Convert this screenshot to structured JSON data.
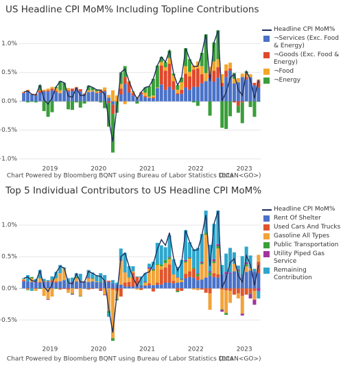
{
  "chart_data": [
    {
      "type": "bar",
      "title": "US Headline CPI MoM% Including Topline Contributions",
      "source": "Chart Powered by Bloomberg BQNT using Bureau of Labor Statistics Data",
      "source_code": "(ECAN<GO>)",
      "categories": [
        null,
        null,
        null,
        null,
        null,
        null,
        null,
        "2019",
        null,
        null,
        null,
        null,
        null,
        null,
        null,
        null,
        null,
        null,
        null,
        "2020",
        null,
        null,
        null,
        null,
        null,
        null,
        null,
        null,
        null,
        null,
        null,
        "2021",
        null,
        null,
        null,
        null,
        null,
        null,
        null,
        null,
        null,
        null,
        null,
        "2022",
        null,
        null,
        null,
        null,
        null,
        null,
        null,
        null,
        null,
        null,
        null,
        "2023",
        null,
        null,
        null
      ],
      "ylim": [
        -1.1,
        1.4
      ],
      "yticks": [
        {
          "value": -1.0,
          "label": "−1.0%"
        },
        {
          "value": -0.5,
          "label": "−0.5%"
        },
        {
          "value": 0,
          "label": "0.0%"
        },
        {
          "value": 0.5,
          "label": "0.5%"
        },
        {
          "value": 1.0,
          "label": "1.0%"
        }
      ],
      "grid": true,
      "series": [
        {
          "name": "Headline CPI MoM%",
          "type": "line",
          "color": "#1f2d5a",
          "values": [
            0.16,
            0.18,
            0.12,
            0.11,
            0.28,
            0.03,
            -0.05,
            0.06,
            0.25,
            0.35,
            0.32,
            0.09,
            0.07,
            0.23,
            0.1,
            0.1,
            0.27,
            0.24,
            0.2,
            0.19,
            0.12,
            -0.33,
            -0.7,
            -0.1,
            0.5,
            0.56,
            0.35,
            0.17,
            0.04,
            0.16,
            0.24,
            0.26,
            0.39,
            0.62,
            0.77,
            0.68,
            0.88,
            0.48,
            0.28,
            0.41,
            0.92,
            0.73,
            0.6,
            0.61,
            0.84,
            1.16,
            0.35,
            1.02,
            1.23,
            0.01,
            0.16,
            0.41,
            0.47,
            0.2,
            0.1,
            0.52,
            0.37,
            0.05,
            0.37
          ]
        },
        {
          "name": "¬Services (Exc. Food & Energy)",
          "color": "#4a72c8",
          "values": [
            0.14,
            0.17,
            0.12,
            0.1,
            0.15,
            0.17,
            0.17,
            0.19,
            0.16,
            0.14,
            0.19,
            0.17,
            0.18,
            0.2,
            0.17,
            0.12,
            0.16,
            0.17,
            0.14,
            0.15,
            0.17,
            0.06,
            -0.06,
            0.0,
            0.12,
            0.3,
            0.15,
            0.1,
            0.05,
            0.12,
            0.07,
            0.06,
            0.05,
            0.23,
            0.29,
            0.2,
            0.25,
            0.2,
            0.12,
            0.13,
            0.24,
            0.2,
            0.25,
            0.25,
            0.31,
            0.35,
            0.4,
            0.34,
            0.41,
            0.26,
            0.42,
            0.53,
            0.31,
            0.33,
            0.42,
            0.38,
            0.42,
            0.28,
            0.24
          ]
        },
        {
          "name": "¬Goods (Exc. Food & Energy)",
          "color": "#e0482c",
          "values": [
            0.01,
            0.02,
            0.0,
            0.02,
            0.03,
            0.01,
            0.02,
            0.03,
            0.02,
            0.0,
            0.0,
            0.02,
            0.04,
            0.04,
            0.04,
            0.01,
            0.0,
            0.0,
            0.01,
            0.03,
            0.02,
            -0.03,
            -0.16,
            -0.01,
            0.1,
            0.12,
            0.18,
            0.04,
            0.0,
            0.03,
            0.02,
            0.0,
            0.02,
            0.0,
            0.33,
            0.33,
            0.4,
            0.15,
            0.02,
            0.07,
            0.24,
            0.23,
            0.3,
            0.32,
            0.16,
            0.0,
            0.07,
            0.19,
            0.18,
            0.06,
            0.11,
            0.04,
            -0.02,
            -0.08,
            -0.02,
            0.04,
            0.0,
            0.04,
            0.12
          ]
        },
        {
          "name": "¬Food",
          "color": "#f4a62a",
          "values": [
            0.01,
            0.01,
            0.01,
            0.01,
            0.01,
            0.02,
            0.03,
            0.03,
            0.05,
            0.05,
            0.0,
            0.04,
            0.0,
            0.01,
            0.0,
            0.01,
            0.03,
            0.02,
            0.02,
            0.03,
            0.05,
            0.05,
            0.19,
            0.1,
            0.08,
            -0.05,
            0.01,
            0.02,
            0.03,
            0.01,
            0.06,
            0.02,
            0.03,
            0.01,
            0.06,
            0.06,
            0.1,
            0.1,
            0.06,
            0.13,
            0.13,
            0.08,
            0.07,
            0.12,
            0.14,
            0.14,
            0.13,
            0.16,
            0.14,
            0.15,
            0.11,
            0.1,
            0.08,
            0.07,
            0.06,
            0.07,
            0.05,
            0.0,
            0.02
          ]
        },
        {
          "name": "¬Energy",
          "color": "#3a9e3a",
          "values": [
            0.0,
            -0.02,
            -0.01,
            -0.02,
            0.09,
            -0.17,
            -0.27,
            -0.19,
            0.02,
            0.16,
            0.13,
            -0.14,
            -0.15,
            -0.02,
            -0.11,
            -0.04,
            0.08,
            0.05,
            0.03,
            -0.02,
            -0.12,
            -0.41,
            -0.67,
            -0.19,
            0.2,
            0.19,
            0.01,
            0.01,
            -0.04,
            0.0,
            0.09,
            0.18,
            0.29,
            0.38,
            0.09,
            0.09,
            0.13,
            0.03,
            0.08,
            0.08,
            0.31,
            0.22,
            -0.02,
            -0.08,
            0.23,
            0.67,
            -0.25,
            0.33,
            0.5,
            -0.46,
            -0.48,
            -0.26,
            0.1,
            -0.12,
            -0.36,
            0.03,
            -0.1,
            -0.27,
            -0.01
          ]
        }
      ]
    },
    {
      "type": "bar",
      "title": "Top 5 Individual Contributors to US Headline CPI MoM%",
      "source": "Chart Powered by Bloomberg BQNT using Bureau of Labor Statistics Data",
      "source_code": "(ECAN<GO>)",
      "categories": [
        null,
        null,
        null,
        null,
        null,
        null,
        null,
        "2019",
        null,
        null,
        null,
        null,
        null,
        null,
        null,
        null,
        null,
        null,
        null,
        "2020",
        null,
        null,
        null,
        null,
        null,
        null,
        null,
        null,
        null,
        null,
        null,
        "2021",
        null,
        null,
        null,
        null,
        null,
        null,
        null,
        null,
        null,
        null,
        null,
        "2022",
        null,
        null,
        null,
        null,
        null,
        null,
        null,
        null,
        null,
        null,
        null,
        "2023",
        null,
        null,
        null
      ],
      "ylim": [
        -0.92,
        1.36
      ],
      "yticks": [
        {
          "value": -0.5,
          "label": "−0.5%"
        },
        {
          "value": 0,
          "label": "0.0%"
        },
        {
          "value": 0.5,
          "label": "0.5%"
        },
        {
          "value": 1.0,
          "label": "1.0%"
        }
      ],
      "grid": true,
      "series": [
        {
          "name": "Headline CPI MoM%",
          "type": "line",
          "color": "#1f2d5a",
          "values": [
            0.16,
            0.18,
            0.12,
            0.11,
            0.28,
            0.03,
            -0.05,
            0.06,
            0.25,
            0.35,
            0.32,
            0.09,
            0.07,
            0.23,
            0.1,
            0.1,
            0.27,
            0.24,
            0.2,
            0.19,
            0.12,
            -0.33,
            -0.7,
            -0.1,
            0.5,
            0.56,
            0.35,
            0.17,
            0.04,
            0.16,
            0.24,
            0.26,
            0.39,
            0.62,
            0.77,
            0.68,
            0.88,
            0.48,
            0.28,
            0.41,
            0.92,
            0.73,
            0.6,
            0.61,
            0.84,
            1.16,
            0.35,
            1.02,
            1.23,
            0.01,
            0.16,
            0.41,
            0.47,
            0.2,
            0.1,
            0.52,
            0.37,
            0.05,
            0.37
          ]
        },
        {
          "name": "Rent Of Shelter",
          "color": "#4a72c8",
          "values": [
            0.11,
            0.11,
            0.1,
            0.09,
            0.09,
            0.1,
            0.1,
            0.1,
            0.09,
            0.11,
            0.13,
            0.08,
            0.11,
            0.11,
            0.1,
            0.11,
            0.1,
            0.11,
            0.1,
            0.09,
            0.11,
            0.1,
            0.08,
            0.06,
            0.06,
            0.03,
            0.03,
            0.03,
            0.05,
            0.05,
            0.04,
            0.05,
            0.05,
            0.06,
            0.06,
            0.09,
            0.09,
            0.08,
            0.09,
            0.1,
            0.16,
            0.18,
            0.17,
            0.13,
            0.14,
            0.17,
            0.2,
            0.18,
            0.17,
            0.22,
            0.23,
            0.23,
            0.27,
            0.26,
            0.22,
            0.26,
            0.28,
            0.27,
            0.24
          ]
        },
        {
          "name": "Used Cars And Trucks",
          "color": "#e0552c",
          "values": [
            0.02,
            -0.01,
            0.0,
            -0.01,
            0.01,
            0.01,
            0.01,
            0.03,
            0.02,
            -0.02,
            -0.01,
            -0.02,
            0.0,
            -0.01,
            0.02,
            0.0,
            -0.02,
            -0.01,
            0.0,
            -0.03,
            0.02,
            0.02,
            -0.02,
            -0.04,
            -0.13,
            0.06,
            0.07,
            0.22,
            0.13,
            -0.02,
            0.01,
            0.03,
            -0.05,
            0.03,
            0.24,
            0.24,
            0.29,
            0.04,
            -0.04,
            -0.04,
            0.07,
            0.09,
            0.14,
            0.06,
            -0.02,
            -0.07,
            -0.08,
            0.06,
            0.05,
            -0.02,
            -0.03,
            -0.04,
            -0.1,
            -0.08,
            -0.12,
            -0.1,
            -0.08,
            -0.04,
            0.18
          ]
        },
        {
          "name": "Gasoline All Types",
          "color": "#f2a33a",
          "values": [
            0.02,
            -0.01,
            0.06,
            -0.03,
            0.06,
            -0.12,
            -0.17,
            -0.13,
            0.05,
            0.13,
            0.18,
            -0.05,
            -0.08,
            0.05,
            -0.12,
            0.0,
            0.06,
            0.04,
            0.01,
            0.0,
            -0.1,
            -0.36,
            -0.77,
            -0.13,
            0.38,
            0.16,
            0.07,
            0.02,
            -0.02,
            -0.01,
            0.04,
            0.23,
            0.23,
            0.28,
            0.05,
            0.07,
            0.08,
            0.1,
            0.08,
            0.03,
            0.18,
            0.2,
            -0.02,
            -0.03,
            0.24,
            0.68,
            -0.26,
            0.16,
            0.41,
            -0.31,
            -0.36,
            -0.19,
            0.12,
            -0.08,
            -0.28,
            0.09,
            0.04,
            -0.14,
            0.11
          ]
        },
        {
          "name": "Public Transportation",
          "color": "#3aa03a",
          "values": [
            0.0,
            -0.01,
            0.02,
            0.0,
            -0.01,
            0.01,
            0.0,
            0.01,
            -0.01,
            0.0,
            0.01,
            0.01,
            -0.01,
            0.02,
            -0.01,
            0.0,
            0.0,
            0.01,
            0.0,
            0.01,
            0.0,
            -0.03,
            -0.04,
            -0.02,
            0.0,
            0.0,
            0.01,
            0.0,
            0.0,
            0.01,
            0.01,
            0.0,
            0.02,
            0.02,
            0.03,
            0.05,
            0.03,
            0.0,
            -0.02,
            0.01,
            0.02,
            0.01,
            0.02,
            0.04,
            0.02,
            0.03,
            0.05,
            0.03,
            0.04,
            -0.01,
            -0.03,
            0.0,
            0.0,
            0.02,
            0.01,
            0.03,
            -0.01,
            0.0,
            0.0
          ]
        },
        {
          "name": "Utility Piped Gas Service",
          "color": "#a2339f",
          "values": [
            0.0,
            0.0,
            0.0,
            0.01,
            0.0,
            0.0,
            -0.01,
            0.0,
            0.0,
            0.0,
            0.0,
            0.0,
            -0.01,
            0.0,
            0.0,
            0.0,
            0.01,
            0.0,
            0.0,
            -0.01,
            -0.01,
            0.0,
            0.0,
            0.0,
            0.01,
            0.0,
            0.0,
            0.0,
            0.0,
            0.0,
            0.01,
            0.02,
            0.01,
            0.0,
            0.0,
            0.0,
            0.01,
            0.0,
            0.01,
            0.01,
            0.02,
            0.01,
            0.0,
            0.01,
            0.02,
            0.0,
            0.02,
            0.03,
            0.03,
            -0.03,
            0.03,
            0.02,
            0.0,
            0.02,
            -0.03,
            0.03,
            -0.07,
            -0.08,
            -0.04
          ]
        },
        {
          "name": "Remaining Contribution",
          "color": "#2ea6cc",
          "values": [
            0.01,
            0.1,
            -0.04,
            0.05,
            0.13,
            0.03,
            0.02,
            0.05,
            0.1,
            0.13,
            0.01,
            0.07,
            0.06,
            0.06,
            0.11,
            -0.01,
            0.12,
            0.09,
            0.09,
            0.14,
            0.08,
            -0.06,
            0.05,
            0.03,
            0.18,
            0.31,
            0.17,
            0.08,
            0.01,
            0.13,
            0.13,
            0.06,
            0.11,
            0.33,
            0.3,
            0.2,
            0.34,
            0.24,
            0.16,
            0.3,
            0.47,
            0.24,
            0.29,
            0.4,
            0.44,
            0.35,
            0.42,
            0.56,
            0.53,
            0.15,
            0.29,
            0.39,
            0.18,
            0.06,
            0.28,
            0.25,
            0.2,
            0.04,
            -0.12
          ]
        }
      ]
    }
  ]
}
